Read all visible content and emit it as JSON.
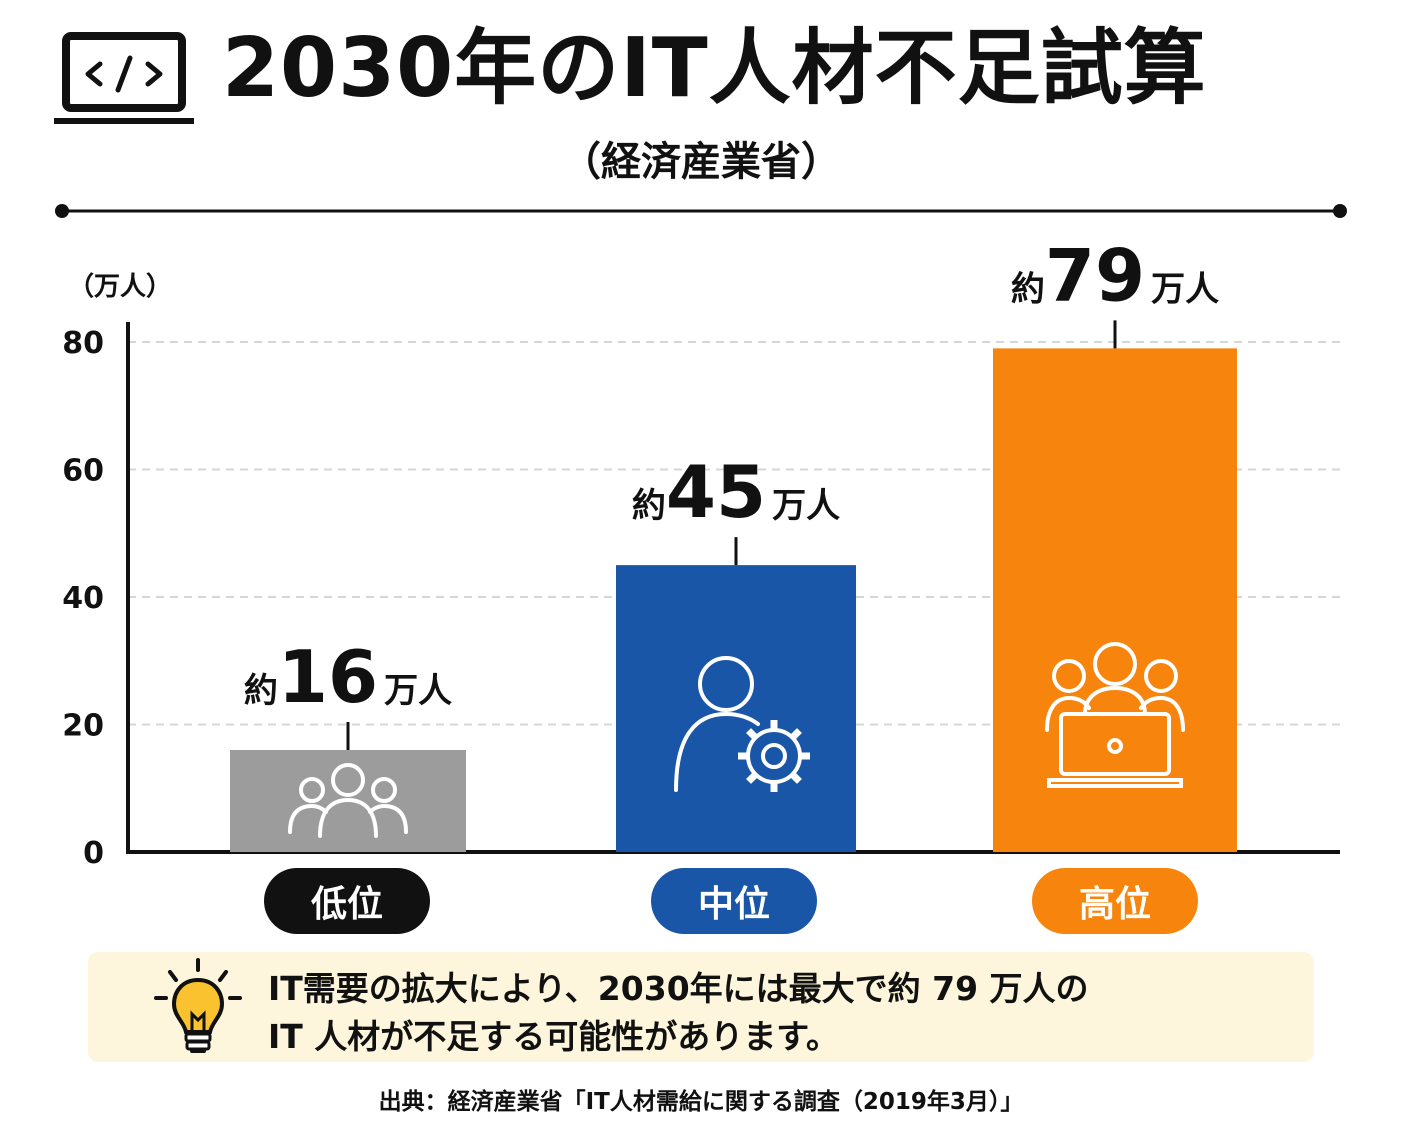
{
  "header": {
    "title": "2030年のIT人材不足試算",
    "subtitle": "（経済産業省）",
    "icon": "laptop-code-icon"
  },
  "chart_data": {
    "type": "bar",
    "title": "2030年のIT人材不足試算",
    "subtitle": "（経済産業省）",
    "ylabel": "（万人）",
    "ylim": [
      0,
      80
    ],
    "yticks": [
      0,
      20,
      40,
      60,
      80
    ],
    "grid": true,
    "categories": [
      "低位",
      "中位",
      "高位"
    ],
    "values": [
      16,
      45,
      79
    ],
    "colors": [
      "#9c9c9c",
      "#1a56a8",
      "#f7840d"
    ],
    "icons": [
      "group-people-icon",
      "person-gear-icon",
      "team-laptop-icon"
    ],
    "data_labels": [
      {
        "prefix": "約",
        "value": "16",
        "suffix": "万人"
      },
      {
        "prefix": "約",
        "value": "45",
        "suffix": "万人"
      },
      {
        "prefix": "約",
        "value": "79",
        "suffix": "万人"
      }
    ],
    "category_colors": [
      "#111111",
      "#1a56a8",
      "#f7840d"
    ]
  },
  "note": {
    "icon": "lightbulb-icon",
    "line1": "IT需要の拡大により、2030年には最大で約 79 万人の",
    "line2": "IT 人材が不足する可能性があります。"
  },
  "source": "出典：経済産業省「IT人材需給に関する調査（2019年3月）」"
}
